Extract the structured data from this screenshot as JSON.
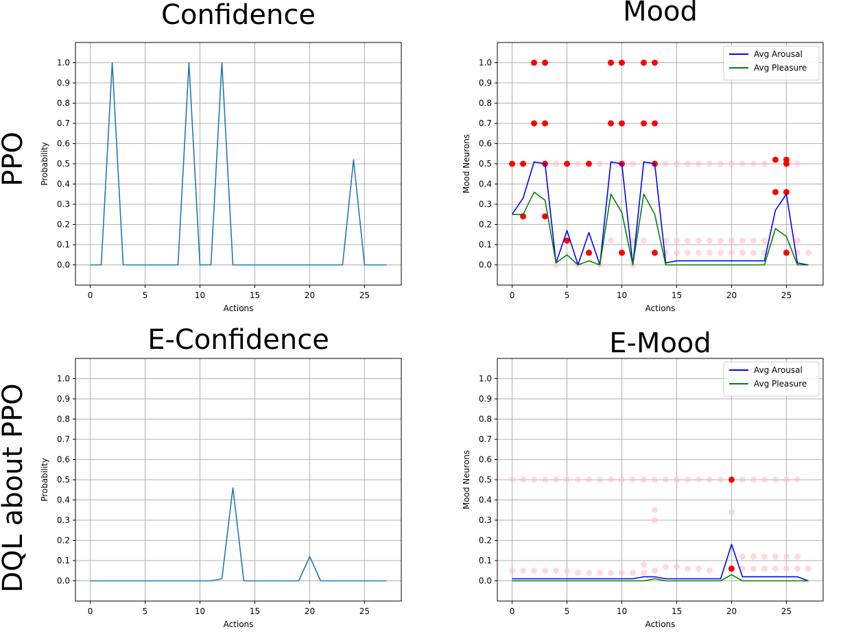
{
  "row_labels": [
    "PPO",
    "DQL about PPO"
  ],
  "colors": {
    "line": "#1f77b4",
    "arousal": "#0000ff",
    "pleasure": "#008000",
    "dot_strong": "#ff0000",
    "dot_faint": "#ffc0cb",
    "grid": "#b0b0b0"
  },
  "chart_data": [
    {
      "type": "line",
      "title": "Confidence",
      "xlabel": "Actions",
      "ylabel": "Probability",
      "xlim": [
        -1.35,
        28.35
      ],
      "ylim": [
        -0.1,
        1.1
      ],
      "xticks": [
        0,
        5,
        10,
        15,
        20,
        25
      ],
      "yticks": [
        0.0,
        0.1,
        0.2,
        0.3,
        0.4,
        0.5,
        0.6,
        0.7,
        0.8,
        0.9,
        1.0
      ],
      "grid": true,
      "series": [
        {
          "x": [
            0,
            1,
            2,
            3,
            4,
            5,
            6,
            7,
            8,
            9,
            10,
            11,
            12,
            13,
            14,
            15,
            16,
            17,
            18,
            19,
            20,
            21,
            22,
            23,
            24,
            25,
            26,
            27
          ],
          "values": [
            0,
            0,
            1.0,
            0,
            0,
            0,
            0,
            0,
            0,
            1.0,
            0,
            0,
            1.0,
            0,
            0,
            0,
            0,
            0,
            0,
            0,
            0,
            0,
            0,
            0,
            0.52,
            0,
            0,
            0
          ]
        }
      ]
    },
    {
      "type": "line",
      "title": "Mood",
      "xlabel": "Actions",
      "ylabel": "Mood Neurons",
      "xlim": [
        -1.35,
        28.35
      ],
      "ylim": [
        -0.1,
        1.1
      ],
      "xticks": [
        0,
        5,
        10,
        15,
        20,
        25
      ],
      "yticks": [
        0.0,
        0.1,
        0.2,
        0.3,
        0.4,
        0.5,
        0.6,
        0.7,
        0.8,
        0.9,
        1.0
      ],
      "grid": true,
      "legend": "top-right",
      "series": [
        {
          "name": "Avg Arousal",
          "x": [
            0,
            1,
            2,
            3,
            4,
            5,
            6,
            7,
            8,
            9,
            10,
            11,
            12,
            13,
            14,
            15,
            16,
            17,
            18,
            19,
            20,
            21,
            22,
            23,
            24,
            25,
            26,
            27
          ],
          "values": [
            0.25,
            0.33,
            0.51,
            0.5,
            0.01,
            0.17,
            0.0,
            0.16,
            0.0,
            0.51,
            0.5,
            0.0,
            0.51,
            0.5,
            0.01,
            0.02,
            0.02,
            0.02,
            0.02,
            0.02,
            0.02,
            0.02,
            0.02,
            0.02,
            0.27,
            0.35,
            0.01,
            0.0
          ]
        },
        {
          "name": "Avg Pleasure",
          "x": [
            0,
            1,
            2,
            3,
            4,
            5,
            6,
            7,
            8,
            9,
            10,
            11,
            12,
            13,
            14,
            15,
            16,
            17,
            18,
            19,
            20,
            21,
            22,
            23,
            24,
            25,
            26,
            27
          ],
          "values": [
            0.25,
            0.25,
            0.36,
            0.32,
            0.01,
            0.05,
            0.0,
            0.02,
            0.0,
            0.35,
            0.26,
            0.0,
            0.35,
            0.25,
            0.0,
            0.0,
            0.0,
            0.0,
            0.0,
            0.0,
            0.0,
            0.0,
            0.0,
            0.0,
            0.18,
            0.14,
            0.0,
            0.0
          ]
        }
      ],
      "scatter_strong": [
        [
          0,
          0.5
        ],
        [
          1,
          0.5
        ],
        [
          1,
          0.24
        ],
        [
          2,
          1.0
        ],
        [
          2,
          0.7
        ],
        [
          3,
          1.0
        ],
        [
          3,
          0.7
        ],
        [
          3,
          0.5
        ],
        [
          3,
          0.24
        ],
        [
          5,
          0.5
        ],
        [
          5,
          0.12
        ],
        [
          7,
          0.5
        ],
        [
          7,
          0.06
        ],
        [
          9,
          1.0
        ],
        [
          9,
          0.7
        ],
        [
          10,
          1.0
        ],
        [
          10,
          0.7
        ],
        [
          10,
          0.5
        ],
        [
          10,
          0.06
        ],
        [
          12,
          1.0
        ],
        [
          12,
          0.7
        ],
        [
          13,
          1.0
        ],
        [
          13,
          0.7
        ],
        [
          13,
          0.5
        ],
        [
          13,
          0.06
        ],
        [
          24,
          0.52
        ],
        [
          24,
          0.36
        ],
        [
          25,
          0.52
        ],
        [
          25,
          0.5
        ],
        [
          25,
          0.36
        ],
        [
          25,
          0.06
        ]
      ],
      "scatter_faint": [
        [
          4,
          0.5
        ],
        [
          6,
          0.5
        ],
        [
          8,
          0.5
        ],
        [
          11,
          0.5
        ],
        [
          14,
          0.5
        ],
        [
          15,
          0.5
        ],
        [
          16,
          0.5
        ],
        [
          17,
          0.5
        ],
        [
          18,
          0.5
        ],
        [
          19,
          0.5
        ],
        [
          20,
          0.5
        ],
        [
          21,
          0.5
        ],
        [
          22,
          0.5
        ],
        [
          23,
          0.5
        ],
        [
          26,
          0.5
        ],
        [
          9,
          0.12
        ],
        [
          11,
          0.12
        ],
        [
          12,
          0.12
        ],
        [
          14,
          0.12
        ],
        [
          15,
          0.12
        ],
        [
          16,
          0.12
        ],
        [
          17,
          0.12
        ],
        [
          18,
          0.12
        ],
        [
          19,
          0.12
        ],
        [
          20,
          0.12
        ],
        [
          21,
          0.12
        ],
        [
          22,
          0.12
        ],
        [
          23,
          0.12
        ],
        [
          26,
          0.12
        ],
        [
          14,
          0.06
        ],
        [
          15,
          0.06
        ],
        [
          16,
          0.06
        ],
        [
          17,
          0.06
        ],
        [
          18,
          0.06
        ],
        [
          19,
          0.06
        ],
        [
          20,
          0.06
        ],
        [
          21,
          0.06
        ],
        [
          22,
          0.06
        ],
        [
          23,
          0.06
        ],
        [
          26,
          0.06
        ],
        [
          27,
          0.06
        ],
        [
          4,
          0.0
        ],
        [
          6,
          0.0
        ],
        [
          8,
          0.0
        ],
        [
          11,
          0.0
        ]
      ]
    },
    {
      "type": "line",
      "title": "E-Confidence",
      "xlabel": "Actions",
      "ylabel": "Probability",
      "xlim": [
        -1.35,
        28.35
      ],
      "ylim": [
        -0.1,
        1.1
      ],
      "xticks": [
        0,
        5,
        10,
        15,
        20,
        25
      ],
      "yticks": [
        0.0,
        0.1,
        0.2,
        0.3,
        0.4,
        0.5,
        0.6,
        0.7,
        0.8,
        0.9,
        1.0
      ],
      "grid": true,
      "series": [
        {
          "x": [
            0,
            1,
            2,
            3,
            4,
            5,
            6,
            7,
            8,
            9,
            10,
            11,
            12,
            13,
            14,
            15,
            16,
            17,
            18,
            19,
            20,
            21,
            22,
            23,
            24,
            25,
            26,
            27
          ],
          "values": [
            0,
            0,
            0,
            0,
            0,
            0,
            0,
            0,
            0,
            0,
            0,
            0,
            0.01,
            0.46,
            0,
            0,
            0,
            0,
            0,
            0,
            0.12,
            0,
            0,
            0,
            0,
            0,
            0,
            0
          ]
        }
      ]
    },
    {
      "type": "line",
      "title": "E-Mood",
      "xlabel": "Actions",
      "ylabel": "Mood Neurons",
      "xlim": [
        -1.35,
        28.35
      ],
      "ylim": [
        -0.1,
        1.1
      ],
      "xticks": [
        0,
        5,
        10,
        15,
        20,
        25
      ],
      "yticks": [
        0.0,
        0.1,
        0.2,
        0.3,
        0.4,
        0.5,
        0.6,
        0.7,
        0.8,
        0.9,
        1.0
      ],
      "grid": true,
      "legend": "top-right",
      "series": [
        {
          "name": "Avg Arousal",
          "x": [
            0,
            1,
            2,
            3,
            4,
            5,
            6,
            7,
            8,
            9,
            10,
            11,
            12,
            13,
            14,
            15,
            16,
            17,
            18,
            19,
            20,
            21,
            22,
            23,
            24,
            25,
            26,
            27
          ],
          "values": [
            0.01,
            0.01,
            0.01,
            0.01,
            0.01,
            0.01,
            0.01,
            0.01,
            0.01,
            0.01,
            0.01,
            0.01,
            0.02,
            0.02,
            0.01,
            0.01,
            0.01,
            0.01,
            0.01,
            0.01,
            0.18,
            0.02,
            0.02,
            0.02,
            0.02,
            0.02,
            0.02,
            0.0
          ]
        },
        {
          "name": "Avg Pleasure",
          "x": [
            0,
            1,
            2,
            3,
            4,
            5,
            6,
            7,
            8,
            9,
            10,
            11,
            12,
            13,
            14,
            15,
            16,
            17,
            18,
            19,
            20,
            21,
            22,
            23,
            24,
            25,
            26,
            27
          ],
          "values": [
            0,
            0,
            0,
            0,
            0,
            0,
            0,
            0,
            0,
            0,
            0,
            0,
            0,
            0.01,
            0,
            0,
            0,
            0,
            0,
            0,
            0.03,
            0,
            0,
            0,
            0,
            0,
            0,
            0
          ]
        }
      ],
      "scatter_strong": [
        [
          20,
          0.5
        ],
        [
          20,
          0.06
        ]
      ],
      "scatter_faint": [
        [
          0,
          0.5
        ],
        [
          1,
          0.5
        ],
        [
          2,
          0.5
        ],
        [
          3,
          0.5
        ],
        [
          4,
          0.5
        ],
        [
          5,
          0.5
        ],
        [
          6,
          0.5
        ],
        [
          7,
          0.5
        ],
        [
          8,
          0.5
        ],
        [
          9,
          0.5
        ],
        [
          10,
          0.5
        ],
        [
          11,
          0.5
        ],
        [
          12,
          0.5
        ],
        [
          13,
          0.5
        ],
        [
          14,
          0.5
        ],
        [
          15,
          0.5
        ],
        [
          16,
          0.5
        ],
        [
          17,
          0.5
        ],
        [
          18,
          0.5
        ],
        [
          19,
          0.5
        ],
        [
          21,
          0.5
        ],
        [
          22,
          0.5
        ],
        [
          23,
          0.5
        ],
        [
          24,
          0.5
        ],
        [
          25,
          0.5
        ],
        [
          26,
          0.5
        ],
        [
          0,
          0.05
        ],
        [
          1,
          0.05
        ],
        [
          2,
          0.05
        ],
        [
          3,
          0.05
        ],
        [
          4,
          0.05
        ],
        [
          5,
          0.05
        ],
        [
          6,
          0.04
        ],
        [
          7,
          0.04
        ],
        [
          8,
          0.04
        ],
        [
          9,
          0.04
        ],
        [
          10,
          0.04
        ],
        [
          11,
          0.04
        ],
        [
          12,
          0.08
        ],
        [
          13,
          0.35
        ],
        [
          13,
          0.3
        ],
        [
          20,
          0.34
        ],
        [
          14,
          0.07
        ],
        [
          15,
          0.07
        ],
        [
          16,
          0.06
        ],
        [
          17,
          0.06
        ],
        [
          18,
          0.05
        ],
        [
          21,
          0.12
        ],
        [
          22,
          0.12
        ],
        [
          23,
          0.12
        ],
        [
          24,
          0.12
        ],
        [
          25,
          0.12
        ],
        [
          26,
          0.12
        ],
        [
          21,
          0.06
        ],
        [
          22,
          0.06
        ],
        [
          23,
          0.06
        ],
        [
          24,
          0.06
        ],
        [
          25,
          0.06
        ],
        [
          26,
          0.06
        ],
        [
          27,
          0.06
        ],
        [
          12,
          0.04
        ],
        [
          13,
          0.05
        ]
      ]
    }
  ]
}
